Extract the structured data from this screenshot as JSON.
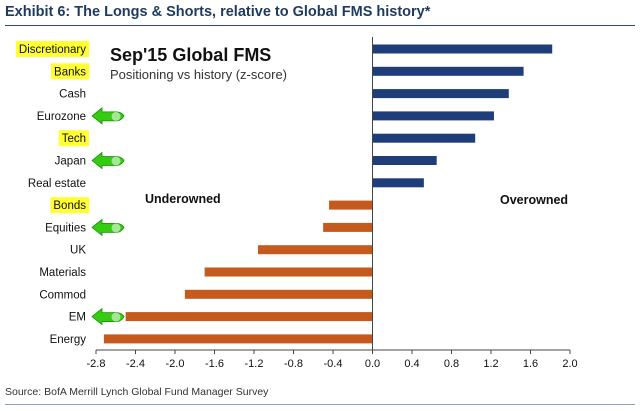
{
  "header": {
    "title": "Exhibit 6: The Longs & Shorts, relative to Global FMS history*"
  },
  "footer": {
    "source": "Source: BofA Merrill Lynch Global Fund Manager Survey"
  },
  "colors": {
    "positive": "#1f3d78",
    "negative": "#c55a1f",
    "highlight": "#ffff33",
    "arrow": "#33cc11"
  },
  "annotations": {
    "highlighted_categories": [
      "Discretionary",
      "Banks",
      "Tech",
      "Bonds"
    ],
    "arrow_categories": [
      "Eurozone",
      "Japan",
      "Equities",
      "EM"
    ]
  },
  "chart_data": {
    "type": "bar",
    "orientation": "horizontal",
    "title": "Sep'15 Global FMS",
    "subtitle": "Positioning vs history (z-score)",
    "categories": [
      "Discretionary",
      "Banks",
      "Cash",
      "Eurozone",
      "Tech",
      "Japan",
      "Real estate",
      "Bonds",
      "Equities",
      "UK",
      "Materials",
      "Commod",
      "EM",
      "Energy"
    ],
    "values": [
      1.82,
      1.53,
      1.38,
      1.23,
      1.04,
      0.65,
      0.52,
      -0.44,
      -0.5,
      -1.16,
      -1.7,
      -1.9,
      -2.5,
      -2.72
    ],
    "xlim": [
      -2.8,
      2.0
    ],
    "xticks": [
      "-2.8",
      "-2.4",
      "-2.0",
      "-1.6",
      "-1.2",
      "-0.8",
      "-0.4",
      "0.0",
      "0.4",
      "0.8",
      "1.2",
      "1.6",
      "2.0"
    ],
    "region_labels": {
      "negative": "Underowned",
      "positive": "Overowned"
    },
    "grid": false
  }
}
